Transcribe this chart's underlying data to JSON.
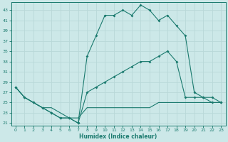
{
  "xlabel": "Humidex (Indice chaleur)",
  "xlim": [
    -0.5,
    23.5
  ],
  "ylim": [
    20.5,
    44.5
  ],
  "xticks": [
    0,
    1,
    2,
    3,
    4,
    5,
    6,
    7,
    8,
    9,
    10,
    11,
    12,
    13,
    14,
    15,
    16,
    17,
    18,
    19,
    20,
    21,
    22,
    23
  ],
  "yticks": [
    21,
    23,
    25,
    27,
    29,
    31,
    33,
    35,
    37,
    39,
    41,
    43
  ],
  "bg_color": "#cce8e8",
  "line_color": "#1a7a6e",
  "grid_color": "#b8d8d8",
  "line1_x": [
    0,
    1,
    2,
    3,
    4,
    5,
    6,
    7,
    8,
    9,
    10,
    11,
    12,
    13,
    14,
    15,
    16,
    17,
    18,
    19,
    20,
    21,
    22,
    23
  ],
  "line1_y": [
    28,
    26,
    25,
    24,
    23,
    22,
    22,
    21,
    34,
    38,
    42,
    42,
    43,
    42,
    44,
    43,
    41,
    42,
    40,
    38,
    27,
    26,
    26,
    25
  ],
  "line2_x": [
    0,
    1,
    2,
    3,
    4,
    5,
    6,
    7,
    8,
    9,
    10,
    11,
    12,
    13,
    14,
    15,
    16,
    17,
    18,
    19,
    20,
    21,
    22,
    23
  ],
  "line2_y": [
    28,
    26,
    25,
    24,
    23,
    22,
    22,
    21,
    27,
    28,
    29,
    30,
    31,
    32,
    33,
    33,
    34,
    35,
    33,
    26,
    26,
    26,
    25,
    25
  ],
  "line3_x": [
    0,
    1,
    2,
    3,
    4,
    5,
    6,
    7,
    8,
    9,
    10,
    11,
    12,
    13,
    14,
    15,
    16,
    17,
    18,
    19,
    20,
    21,
    22,
    23
  ],
  "line3_y": [
    28,
    26,
    25,
    24,
    24,
    23,
    22,
    22,
    24,
    24,
    24,
    24,
    24,
    24,
    24,
    24,
    25,
    25,
    25,
    25,
    25,
    25,
    25,
    25
  ],
  "figwidth": 3.2,
  "figheight": 2.0,
  "dpi": 100
}
